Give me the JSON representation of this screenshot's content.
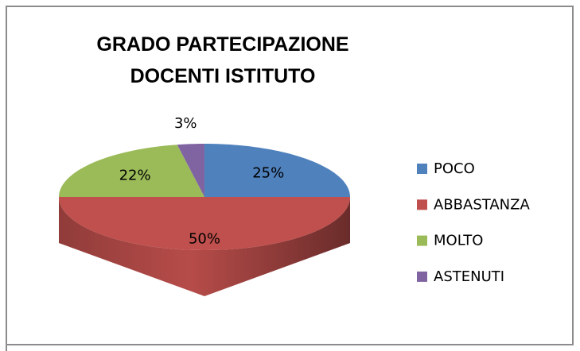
{
  "chart_data": {
    "type": "pie3d",
    "title": "GRADO PARTECIPAZIONE DOCENTI ISTITUTO",
    "categories": [
      "POCO",
      "ABBASTANZA",
      "MOLTO",
      "ASTENUTI"
    ],
    "values": [
      25,
      50,
      22,
      3
    ],
    "value_labels": [
      "25%",
      "50%",
      "22%",
      "3%"
    ],
    "colors": [
      "#4f81bd",
      "#c0504d",
      "#9bbb59",
      "#8064a2"
    ],
    "legend": "right"
  }
}
